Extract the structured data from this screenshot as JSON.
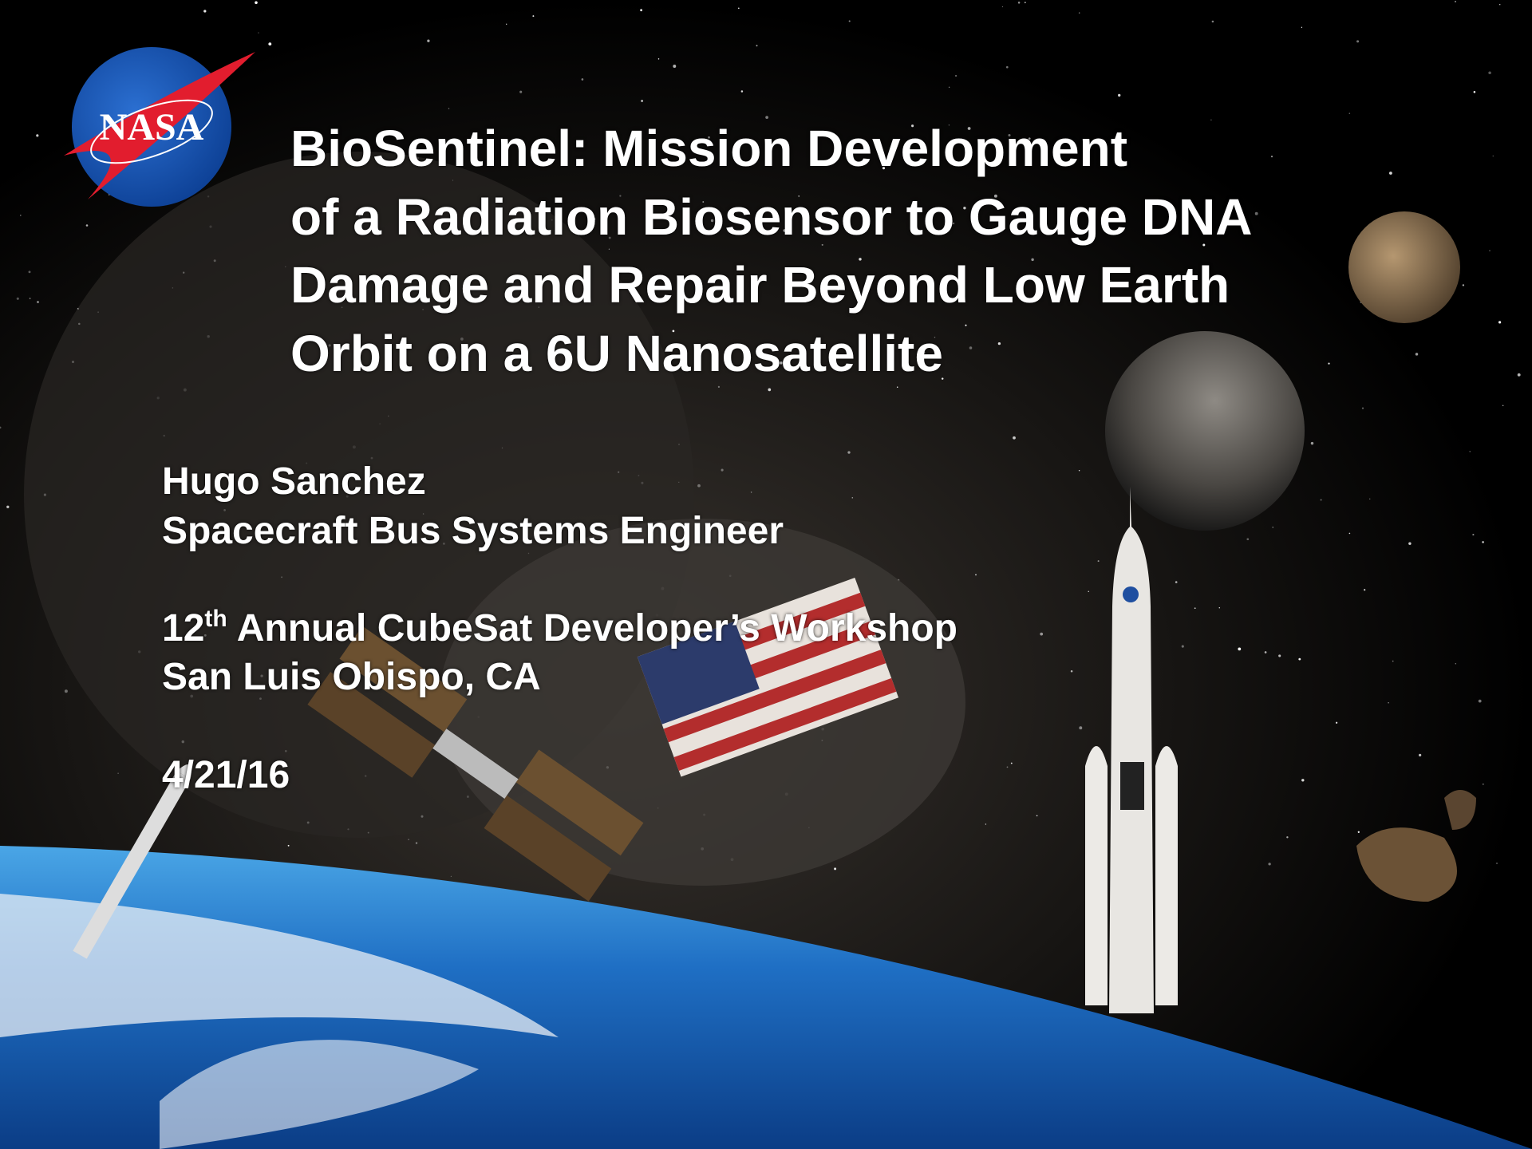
{
  "logo": {
    "text": "NASA"
  },
  "title": {
    "lines": [
      "BioSentinel: Mission Development",
      "of a Radiation Biosensor to Gauge DNA",
      "Damage and Repair Beyond Low Earth",
      "Orbit on a 6U Nanosatellite"
    ]
  },
  "presenter": {
    "name": "Hugo Sanchez",
    "role": "Spacecraft Bus Systems Engineer"
  },
  "event": {
    "number": "12",
    "ordinal_suffix": "th",
    "name": "Annual CubeSat Developer’s Workshop",
    "location": "San Luis Obispo, CA"
  },
  "date": "4/21/16"
}
